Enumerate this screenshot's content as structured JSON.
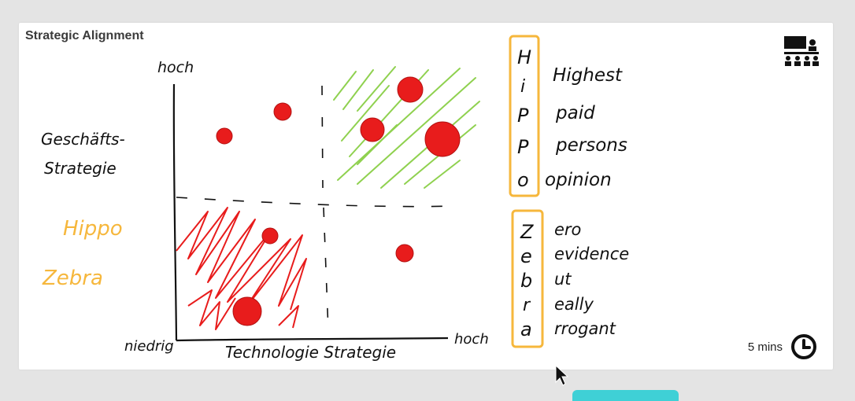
{
  "header": {
    "title": "Strategic Alignment"
  },
  "icons": {
    "presenter": "presenter-icon",
    "timer": "clock-icon",
    "cursor": "mouse-pointer-icon"
  },
  "timer": {
    "label": "5 mins"
  },
  "board": {
    "y_axis_top": "hoch",
    "y_axis_title_line1": "Geschäfts-",
    "y_axis_title_line2": "Strategie",
    "x_axis_left": "niedrig",
    "x_axis_right": "hoch",
    "x_axis_title": "Technologie Strategie",
    "side_note_1": "Hippo",
    "side_note_2": "Zebra",
    "hippo_letters": [
      "H",
      "i",
      "P",
      "P",
      "o"
    ],
    "hippo_words": [
      "Highest",
      "paid",
      "persons",
      "opinion"
    ],
    "zebra_letters": [
      "Z",
      "e",
      "b",
      "r",
      "a"
    ],
    "zebra_words": [
      "ero",
      "evidence",
      "ut",
      "eally",
      "rrogant"
    ]
  },
  "colors": {
    "accent_yellow": "#f6b73c",
    "ink": "#111111",
    "red": "#e81c1c",
    "green": "#8fd14f",
    "teal": "#3fd0d6"
  }
}
